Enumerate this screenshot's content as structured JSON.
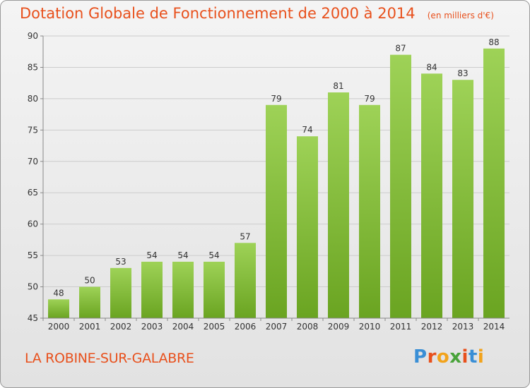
{
  "header": {
    "title": "Dotation Globale de Fonctionnement de 2000 à 2014",
    "unit": "(en milliers d'€)"
  },
  "footer": {
    "city": "LA ROBINE-SUR-GALABRE",
    "logo_text": "Proxiti",
    "logo_colors": [
      "#3a8fd6",
      "#e8501c",
      "#f2a31b",
      "#49a33a",
      "#e8501c",
      "#3a8fd6",
      "#f2a31b"
    ]
  },
  "colors": {
    "title": "#e8501c",
    "bar_light": "#9ed257",
    "bar_dark": "#6aa421",
    "grid": "#cccccc",
    "axis": "#888888"
  },
  "chart_data": {
    "type": "bar",
    "categories": [
      "2000",
      "2001",
      "2002",
      "2003",
      "2004",
      "2005",
      "2006",
      "2007",
      "2008",
      "2009",
      "2010",
      "2011",
      "2012",
      "2013",
      "2014"
    ],
    "values": [
      48,
      50,
      53,
      54,
      54,
      54,
      57,
      79,
      74,
      81,
      79,
      87,
      84,
      83,
      88
    ],
    "title": "Dotation Globale de Fonctionnement de 2000 à 2014",
    "subtitle": "(en milliers d'€)",
    "xlabel": "",
    "ylabel": "",
    "ylim": [
      45,
      90
    ],
    "yticks": [
      45,
      50,
      55,
      60,
      65,
      70,
      75,
      80,
      85,
      90
    ],
    "grid": true
  }
}
